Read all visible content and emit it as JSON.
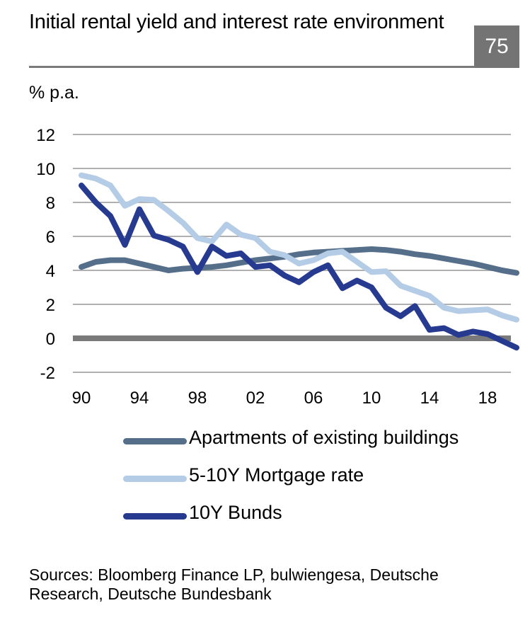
{
  "header": {
    "title": "Initial rental yield and interest rate environment",
    "badge": "75"
  },
  "unit_label": "% p.a.",
  "sources": "Sources: Bloomberg Finance LP, bulwiengesa, Deutsche Research, Deutsche Bundesbank",
  "chart_data": {
    "type": "line",
    "title": "Initial rental yield and interest rate environment",
    "xlabel": "",
    "ylabel": "% p.a.",
    "ylim": [
      -2,
      12
    ],
    "yticks": [
      "12",
      "10",
      "8",
      "6",
      "4",
      "2",
      "0",
      "-2"
    ],
    "ytick_values": [
      12,
      10,
      8,
      6,
      4,
      2,
      0,
      -2
    ],
    "xticks": [
      "90",
      "94",
      "98",
      "02",
      "06",
      "10",
      "14",
      "18"
    ],
    "xtick_years": [
      1990,
      1994,
      1998,
      2002,
      2006,
      2010,
      2014,
      2018
    ],
    "x": [
      1990,
      1991,
      1992,
      1993,
      1994,
      1995,
      1996,
      1997,
      1998,
      1999,
      2000,
      2001,
      2002,
      2003,
      2004,
      2005,
      2006,
      2007,
      2008,
      2009,
      2010,
      2011,
      2012,
      2013,
      2014,
      2015,
      2016,
      2017,
      2018,
      2019,
      2020
    ],
    "grid": true,
    "zero_line": true,
    "legend_position": "bottom",
    "series": [
      {
        "name": "Apartments of existing buildings",
        "color": "#556f8a",
        "values": [
          4.2,
          4.5,
          4.6,
          4.6,
          4.4,
          4.2,
          4.0,
          4.1,
          4.15,
          4.2,
          4.3,
          4.45,
          4.6,
          4.7,
          4.8,
          4.95,
          5.05,
          5.1,
          5.15,
          5.2,
          5.25,
          5.2,
          5.1,
          4.95,
          4.85,
          4.7,
          4.55,
          4.4,
          4.2,
          4.0,
          3.85
        ]
      },
      {
        "name": "5-10Y Mortgage rate",
        "color": "#b4cce6",
        "values": [
          9.6,
          9.4,
          9.0,
          7.8,
          8.2,
          8.15,
          7.5,
          6.8,
          5.9,
          5.7,
          6.7,
          6.1,
          5.9,
          5.1,
          4.9,
          4.4,
          4.6,
          5.0,
          5.1,
          4.5,
          3.9,
          3.95,
          3.1,
          2.8,
          2.5,
          1.8,
          1.6,
          1.65,
          1.7,
          1.35,
          1.1
        ]
      },
      {
        "name": "10Y Bunds",
        "color": "#263b8f",
        "values": [
          9.0,
          8.0,
          7.2,
          5.5,
          7.6,
          6.05,
          5.8,
          5.4,
          3.9,
          5.4,
          4.85,
          5.0,
          4.2,
          4.3,
          3.7,
          3.3,
          3.9,
          4.3,
          2.95,
          3.4,
          3.0,
          1.8,
          1.3,
          1.9,
          0.5,
          0.6,
          0.2,
          0.4,
          0.25,
          -0.15,
          -0.55
        ]
      }
    ]
  }
}
